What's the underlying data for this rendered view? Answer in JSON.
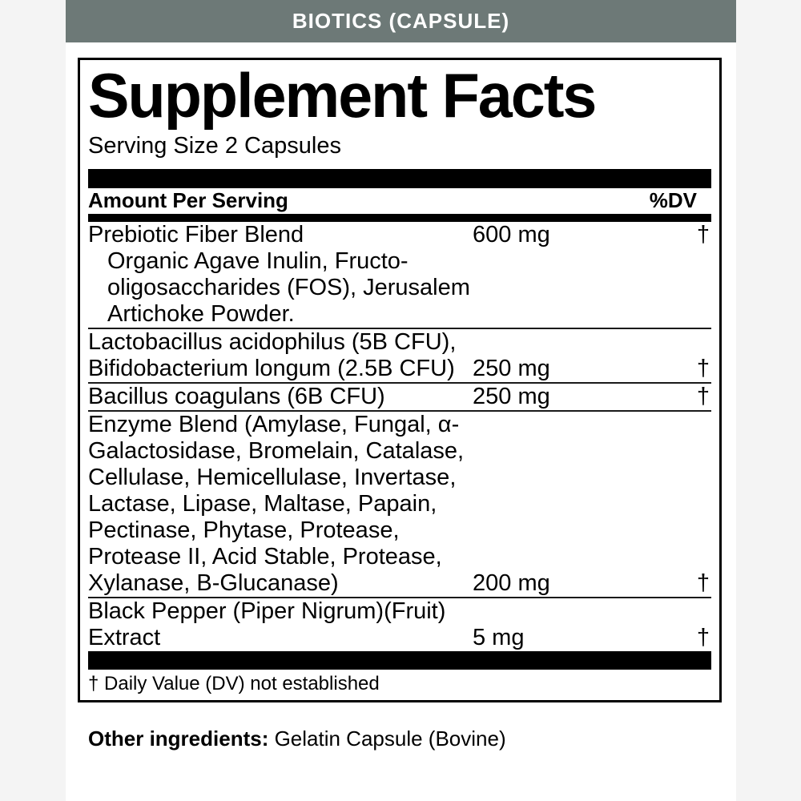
{
  "banner": {
    "title": "BIOTICS (CAPSULE)",
    "bg_color": "#6d7977",
    "text_color": "#ffffff"
  },
  "panel": {
    "title": "Supplement Facts",
    "serving_size": "Serving Size 2 Capsules",
    "column_headers": {
      "left": "Amount Per Serving",
      "right": "%DV"
    },
    "rows": [
      {
        "separator_after": true,
        "lines": [
          {
            "text": "Prebiotic Fiber Blend",
            "indent": false,
            "amount": "600 mg",
            "dv": "†"
          },
          {
            "text": "Organic Agave Inulin, Fructo-",
            "indent": true,
            "amount": "",
            "dv": ""
          },
          {
            "text": "oligosaccharides (FOS), Jerusalem",
            "indent": true,
            "amount": "",
            "dv": ""
          },
          {
            "text": "Artichoke Powder.",
            "indent": true,
            "amount": "",
            "dv": ""
          }
        ]
      },
      {
        "separator_after": true,
        "lines": [
          {
            "text": "Lactobacillus acidophilus (5B CFU),",
            "indent": false,
            "amount": "",
            "dv": ""
          },
          {
            "text": "Bifidobacterium longum (2.5B CFU)",
            "indent": false,
            "amount": "250 mg",
            "dv": "†"
          }
        ]
      },
      {
        "separator_after": true,
        "lines": [
          {
            "text": "Bacillus coagulans (6B CFU)",
            "indent": false,
            "amount": "250 mg",
            "dv": "†"
          }
        ]
      },
      {
        "separator_after": true,
        "lines": [
          {
            "text": "Enzyme Blend (Amylase, Fungal, α-",
            "indent": false,
            "amount": "",
            "dv": ""
          },
          {
            "text": "Galactosidase, Bromelain, Catalase,",
            "indent": false,
            "amount": "",
            "dv": ""
          },
          {
            "text": "Cellulase, Hemicellulase, Invertase,",
            "indent": false,
            "amount": "",
            "dv": ""
          },
          {
            "text": "Lactase, Lipase, Maltase, Papain,",
            "indent": false,
            "amount": "",
            "dv": ""
          },
          {
            "text": "Pectinase, Phytase, Protease,",
            "indent": false,
            "amount": "",
            "dv": ""
          },
          {
            "text": "Protease II, Acid Stable, Protease,",
            "indent": false,
            "amount": "",
            "dv": ""
          },
          {
            "text": "Xylanase, B-Glucanase)",
            "indent": false,
            "amount": "200 mg",
            "dv": "†"
          }
        ]
      },
      {
        "separator_after": false,
        "lines": [
          {
            "text": "Black Pepper (Piper Nigrum)(Fruit)",
            "indent": false,
            "amount": "",
            "dv": ""
          },
          {
            "text": "Extract",
            "indent": false,
            "amount": "5 mg",
            "dv": "†"
          }
        ]
      }
    ],
    "footnote": "† Daily Value (DV) not established"
  },
  "other_ingredients": {
    "label": "Other ingredients:",
    "value": " Gelatin Capsule (Bovine)"
  }
}
